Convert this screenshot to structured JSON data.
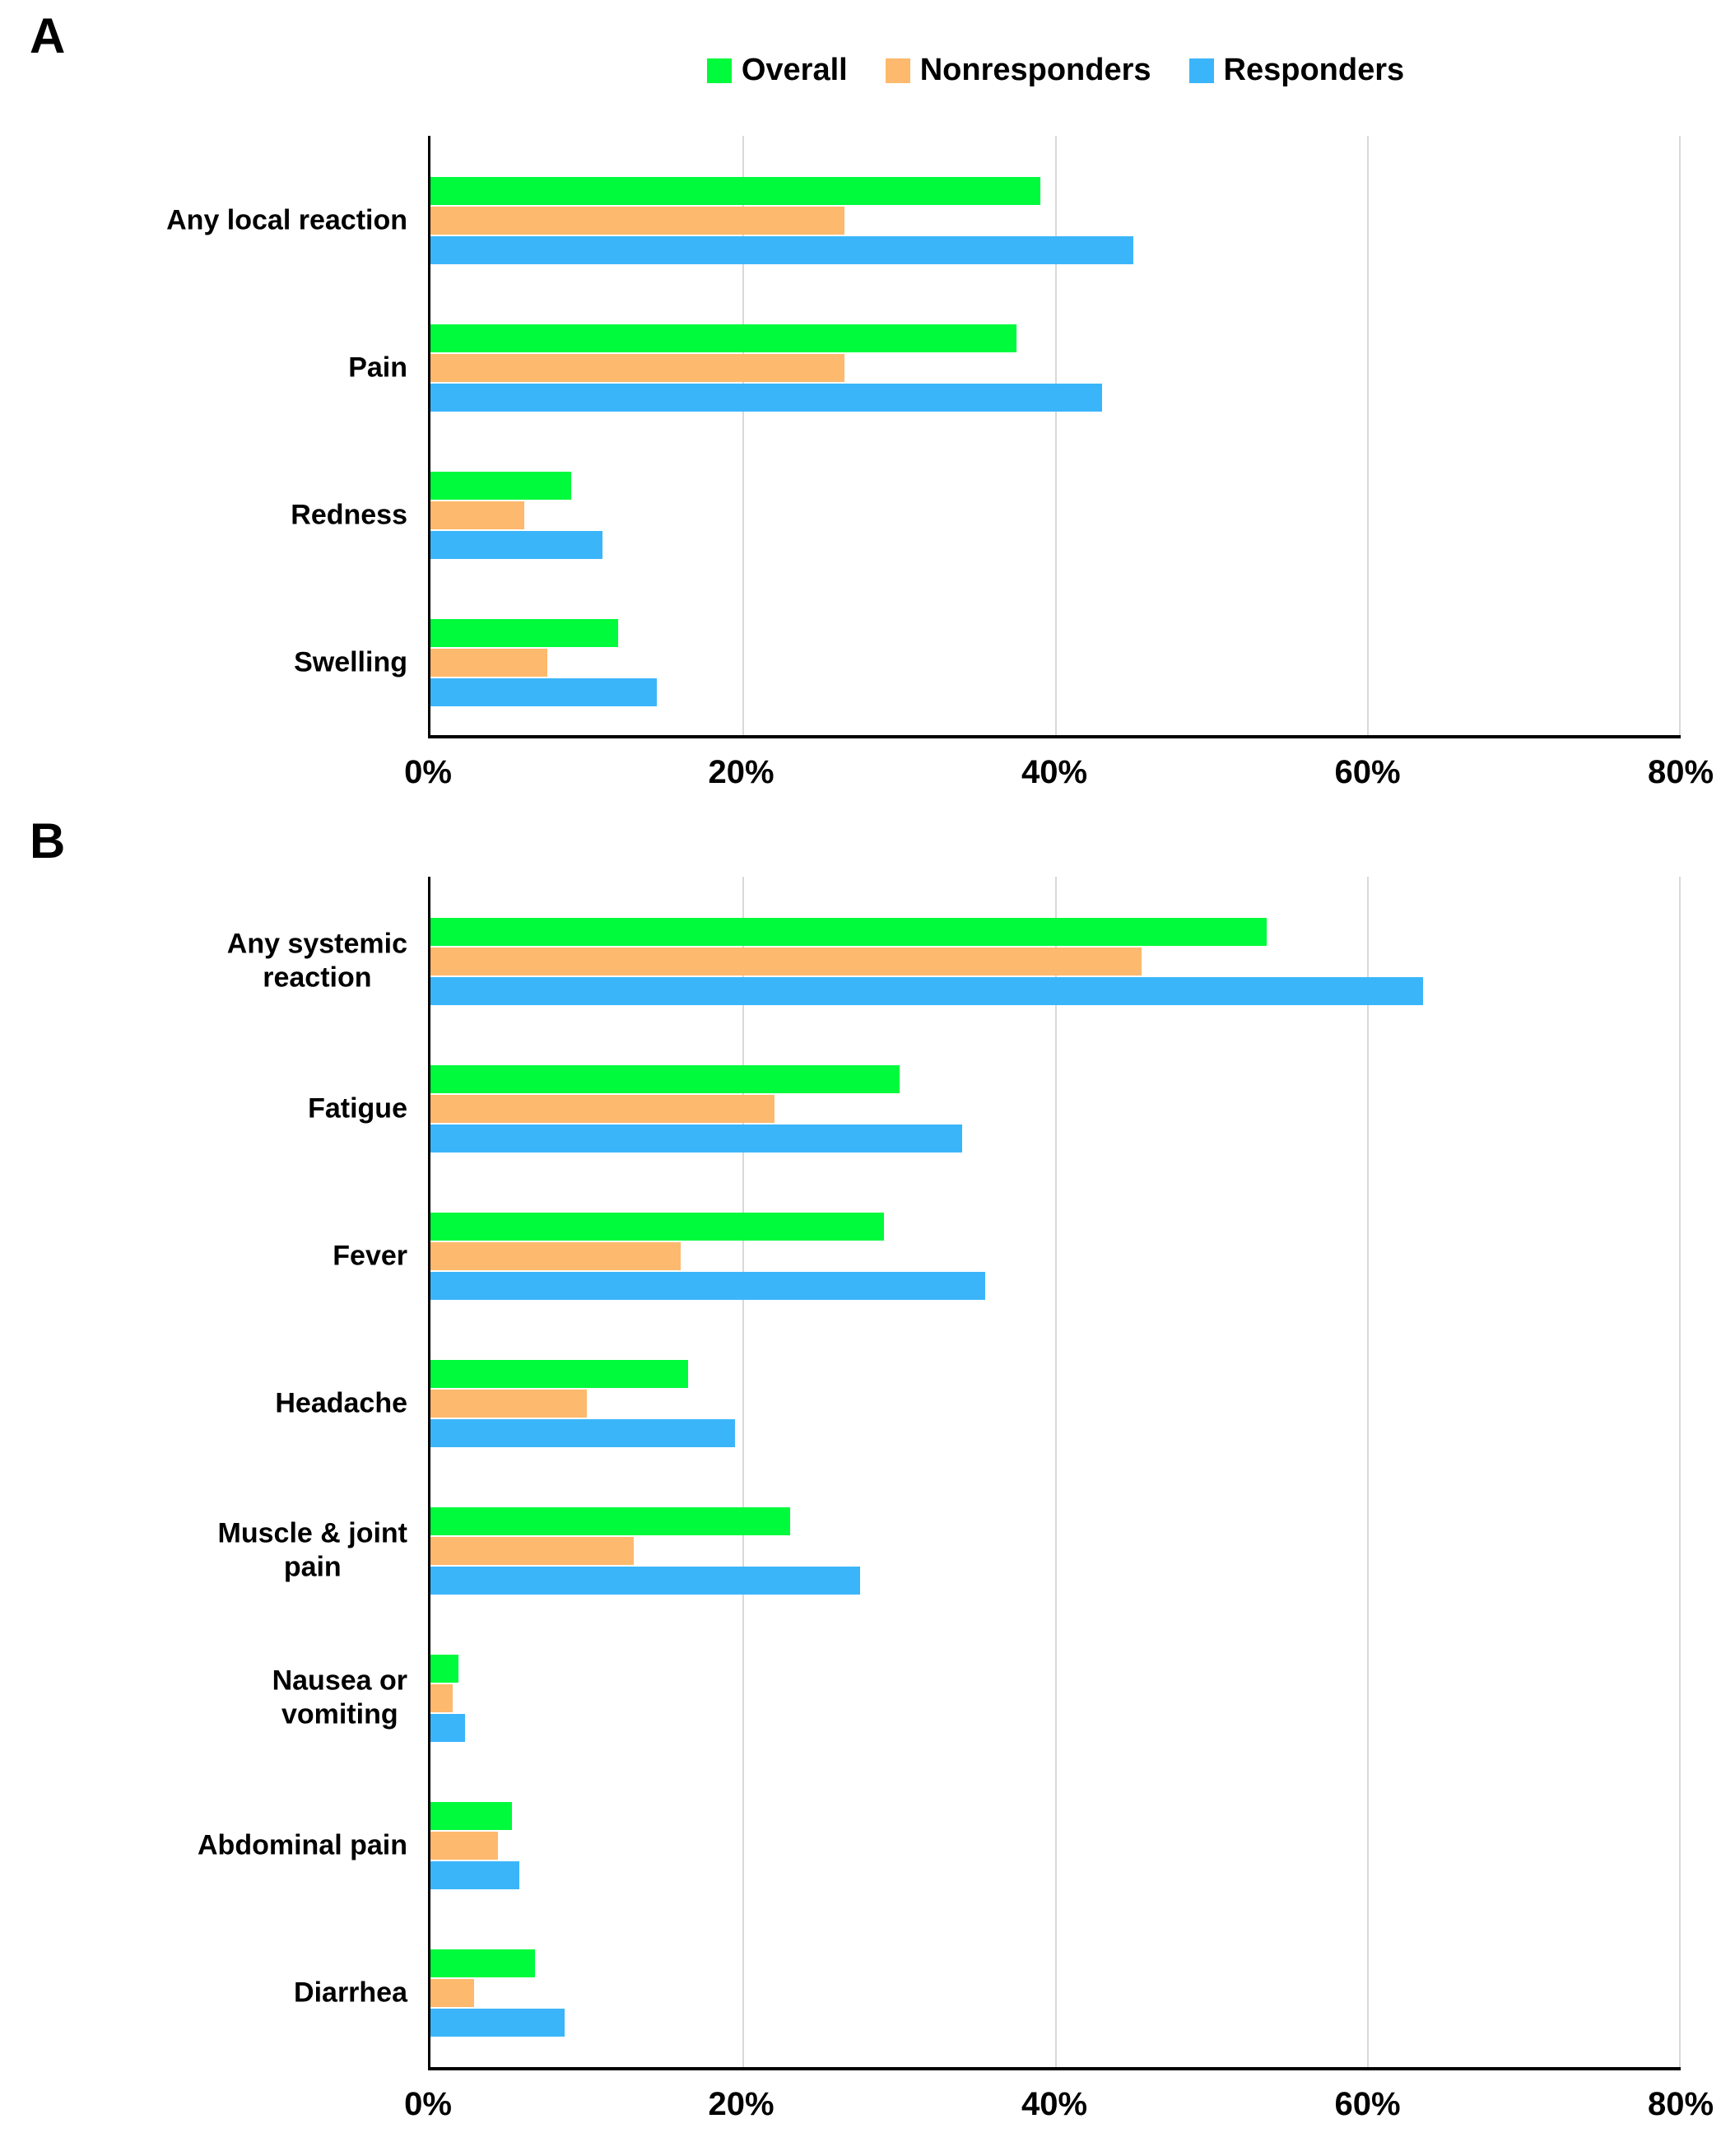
{
  "colors": {
    "overall": "#00FA3C",
    "nonresponders": "#FDB96D",
    "responders": "#3BB5FA",
    "gridline": "#D9D9D9",
    "axis": "#000000"
  },
  "legend": {
    "items": [
      "Overall",
      "Nonresponders",
      "Responders"
    ]
  },
  "chart_data": [
    {
      "type": "bar",
      "orientation": "horizontal",
      "panel": "A",
      "title": "",
      "categories": [
        "Any local reaction",
        "Pain",
        "Redness",
        "Swelling"
      ],
      "category_lines": [
        [
          "Any local reaction"
        ],
        [
          "Pain"
        ],
        [
          "Redness"
        ],
        [
          "Swelling"
        ]
      ],
      "series": [
        {
          "name": "Overall",
          "color": "#00FA3C",
          "values": [
            39,
            37.5,
            9,
            12
          ]
        },
        {
          "name": "Nonresponders",
          "color": "#FDB96D",
          "values": [
            26.5,
            26.5,
            6,
            7.5
          ]
        },
        {
          "name": "Responders",
          "color": "#3BB5FA",
          "values": [
            45,
            43,
            11,
            14.5
          ]
        }
      ],
      "xlim": [
        0,
        80
      ],
      "x_ticks": [
        "0%",
        "20%",
        "40%",
        "60%",
        "80%"
      ],
      "grid": true,
      "legend_position": "top"
    },
    {
      "type": "bar",
      "orientation": "horizontal",
      "panel": "B",
      "title": "",
      "categories": [
        "Any systemic reaction",
        "Fatigue",
        "Fever",
        "Headache",
        "Muscle & joint pain",
        "Nausea or vomiting",
        "Abdominal pain",
        "Diarrhea"
      ],
      "category_lines": [
        [
          "Any systemic",
          "reaction"
        ],
        [
          "Fatigue"
        ],
        [
          "Fever"
        ],
        [
          "Headache"
        ],
        [
          "Muscle & joint",
          "pain"
        ],
        [
          "Nausea or",
          "vomiting"
        ],
        [
          "Abdominal pain"
        ],
        [
          "Diarrhea"
        ]
      ],
      "series": [
        {
          "name": "Overall",
          "color": "#00FA3C",
          "values": [
            53.5,
            30,
            29,
            16.5,
            23,
            1.8,
            5.2,
            6.7
          ]
        },
        {
          "name": "Nonresponders",
          "color": "#FDB96D",
          "values": [
            45.5,
            22,
            16,
            10,
            13,
            1.4,
            4.3,
            2.8
          ]
        },
        {
          "name": "Responders",
          "color": "#3BB5FA",
          "values": [
            63.5,
            34,
            35.5,
            19.5,
            27.5,
            2.2,
            5.7,
            8.6
          ]
        }
      ],
      "xlim": [
        0,
        80
      ],
      "x_ticks": [
        "0%",
        "20%",
        "40%",
        "60%",
        "80%"
      ],
      "grid": true,
      "legend_position": "none"
    }
  ]
}
